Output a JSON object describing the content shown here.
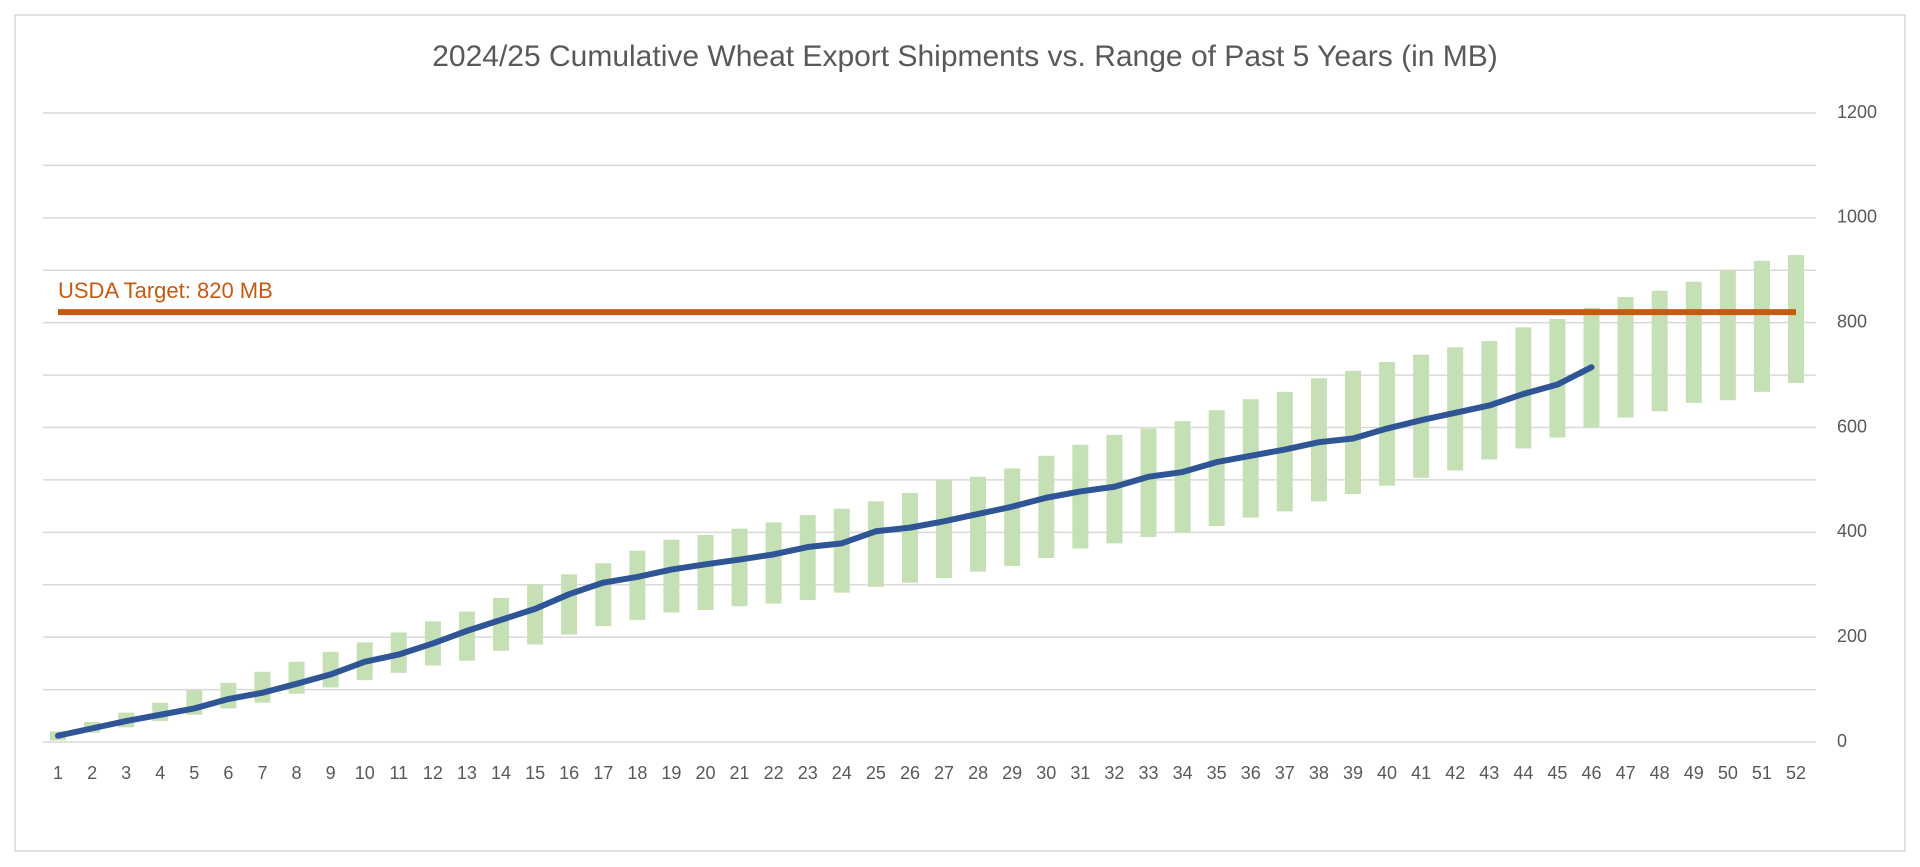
{
  "chart_data": {
    "type": "range_line",
    "title": "2024/25 Cumulative Wheat Export Shipments vs. Range of Past 5 Years (in MB)",
    "categories": [
      1,
      2,
      3,
      4,
      5,
      6,
      7,
      8,
      9,
      10,
      11,
      12,
      13,
      14,
      15,
      16,
      17,
      18,
      19,
      20,
      21,
      22,
      23,
      24,
      25,
      26,
      27,
      28,
      29,
      30,
      31,
      32,
      33,
      34,
      35,
      36,
      37,
      38,
      39,
      40,
      41,
      42,
      43,
      44,
      45,
      46,
      47,
      48,
      49,
      50,
      51,
      52
    ],
    "range": {
      "color": "#c5e0b4",
      "low": [
        3,
        18,
        28,
        40,
        52,
        64,
        75,
        92,
        104,
        118,
        132,
        146,
        155,
        174,
        186,
        205,
        221,
        233,
        247,
        252,
        259,
        264,
        271,
        285,
        296,
        304,
        313,
        325,
        336,
        351,
        369,
        379,
        391,
        400,
        412,
        428,
        440,
        459,
        473,
        489,
        504,
        518,
        539,
        560,
        581,
        600,
        619,
        631,
        647,
        652,
        668,
        685
      ],
      "high": [
        20,
        38,
        56,
        75,
        99,
        113,
        134,
        153,
        172,
        190,
        209,
        230,
        249,
        275,
        301,
        320,
        341,
        365,
        386,
        395,
        407,
        419,
        433,
        445,
        459,
        475,
        499,
        506,
        522,
        546,
        567,
        586,
        598,
        612,
        633,
        654,
        668,
        694,
        708,
        725,
        739,
        753,
        765,
        791,
        807,
        828,
        849,
        861,
        878,
        899,
        918,
        929
      ]
    },
    "line": {
      "color": "#2f5597",
      "values": [
        12,
        26,
        40,
        52,
        64,
        82,
        94,
        111,
        129,
        153,
        167,
        188,
        212,
        233,
        254,
        282,
        304,
        315,
        329,
        339,
        348,
        358,
        372,
        379,
        402,
        409,
        421,
        435,
        449,
        466,
        478,
        487,
        506,
        515,
        534,
        546,
        558,
        572,
        579,
        598,
        614,
        628,
        642,
        664,
        682,
        715,
        null,
        null,
        null,
        null,
        null,
        null
      ]
    },
    "target": {
      "value": 820,
      "label": "USDA Target: 820 MB",
      "color": "#c55a11"
    },
    "ylim": [
      0,
      1200
    ],
    "yticks": [
      0,
      200,
      400,
      600,
      800,
      1000,
      1200
    ],
    "ygrid": [
      0,
      100,
      200,
      300,
      400,
      500,
      600,
      700,
      800,
      900,
      1000,
      1100,
      1200
    ],
    "grid": true,
    "yaxis_side": "right"
  }
}
